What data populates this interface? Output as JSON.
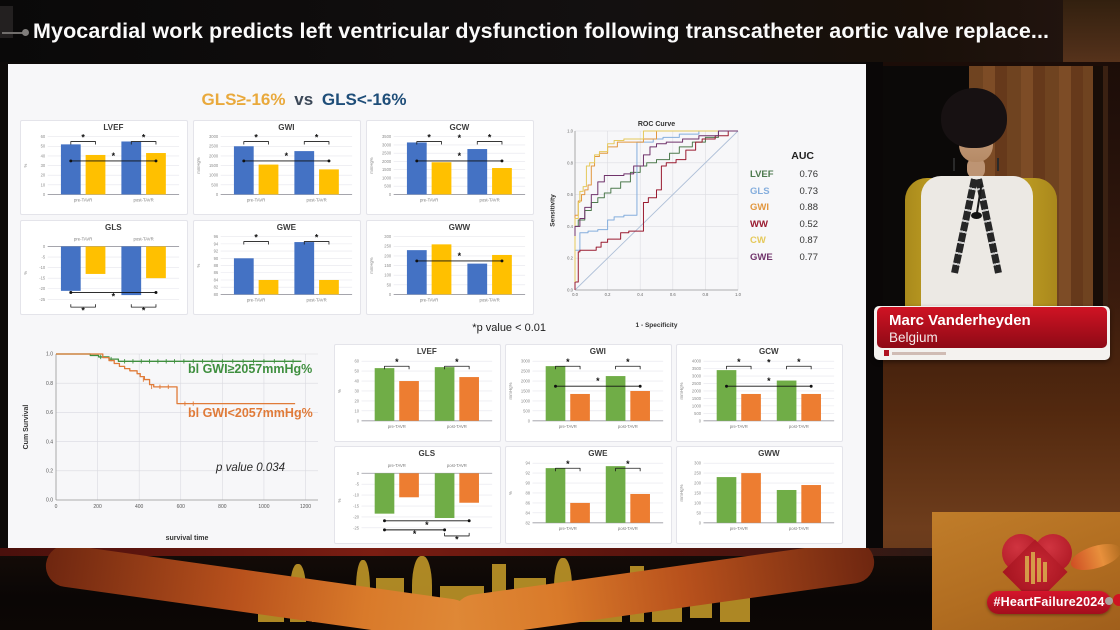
{
  "header": {
    "title": "Myocardial work predicts left ventricular dysfunction following transcatheter aortic valve replace..."
  },
  "speaker": {
    "name": "Marc Vanderheyden",
    "country": "Belgium"
  },
  "badge": {
    "hashtag": "#HeartFailure2024"
  },
  "chart_data": {
    "comparison_heading": {
      "group_a": "GLS≥-16%",
      "vs": "vs",
      "group_b": "GLS<-16%",
      "color_a": "#E9A93C",
      "color_b": "#1F4E79"
    },
    "footnote": "*p value < 0.01",
    "categories": [
      "pre-TAVR",
      "post-TAVR"
    ],
    "grid1": {
      "type": "bar",
      "series_colors": [
        "#4472C4",
        "#FFC000"
      ],
      "charts": [
        {
          "title": "LVEF",
          "ylabel": "%",
          "ylim": [
            0,
            60
          ],
          "step": 10,
          "series": [
            [
              52,
              55
            ],
            [
              41,
              43
            ]
          ],
          "sig": {
            "pairs": [
              true,
              true
            ],
            "span": true
          }
        },
        {
          "title": "GWI",
          "ylabel": "mmHg%",
          "ylim": [
            0,
            3000
          ],
          "step": 500,
          "series": [
            [
              2500,
              2250
            ],
            [
              1550,
              1300
            ]
          ],
          "sig": {
            "pairs": [
              true,
              true
            ],
            "span": true
          }
        },
        {
          "title": "GCW",
          "ylabel": "mmHg%",
          "ylim": [
            0,
            3500
          ],
          "step": 500,
          "series": [
            [
              3150,
              2750
            ],
            [
              1950,
              1600
            ]
          ],
          "sig": {
            "pairs": [
              true,
              true
            ],
            "span": true,
            "mid_star": true
          }
        },
        {
          "title": "GLS",
          "ylabel": "%",
          "ylim": [
            -25,
            0
          ],
          "step": 5,
          "series": [
            [
              -21,
              -23
            ],
            [
              -13,
              -15
            ]
          ],
          "sig": {
            "pairs": [
              true,
              true
            ],
            "span": true
          }
        },
        {
          "title": "GWE",
          "ylabel": "%",
          "ylim": [
            80,
            96
          ],
          "step": 2,
          "series": [
            [
              90,
              94.5
            ],
            [
              84,
              84
            ]
          ],
          "sig": {
            "pairs": [
              true,
              true
            ]
          }
        },
        {
          "title": "GWW",
          "ylabel": "mmHg%",
          "ylim": [
            0,
            300
          ],
          "step": 50,
          "series": [
            [
              230,
              160
            ],
            [
              260,
              205
            ]
          ],
          "sig": {
            "span": true
          }
        }
      ]
    },
    "grid2": {
      "type": "bar",
      "series_colors": [
        "#70AD47",
        "#ED7D31"
      ],
      "charts": [
        {
          "title": "LVEF",
          "ylabel": "%",
          "ylim": [
            0,
            60
          ],
          "step": 10,
          "series": [
            [
              53,
              54
            ],
            [
              40,
              44
            ]
          ],
          "sig": {
            "pairs": [
              true,
              true
            ]
          }
        },
        {
          "title": "GWI",
          "ylabel": "mmHg%",
          "ylim": [
            0,
            3000
          ],
          "step": 500,
          "series": [
            [
              2750,
              2250
            ],
            [
              1350,
              1500
            ]
          ],
          "sig": {
            "pairs": [
              true,
              true
            ],
            "span": true
          }
        },
        {
          "title": "GCW",
          "ylabel": "mmHg%",
          "ylim": [
            0,
            4000
          ],
          "step": 500,
          "series": [
            [
              3400,
              2700
            ],
            [
              1800,
              1800
            ]
          ],
          "sig": {
            "pairs": [
              true,
              true
            ],
            "span": true,
            "mid_star": true
          }
        },
        {
          "title": "GLS",
          "ylabel": "%",
          "ylim": [
            -25,
            0
          ],
          "step": 5,
          "series": [
            [
              -18.5,
              -20.5
            ],
            [
              -11,
              -13.5
            ]
          ],
          "sig": {
            "pairs": [
              false,
              true
            ],
            "span": true,
            "span2": true
          }
        },
        {
          "title": "GWE",
          "ylabel": "%",
          "ylim": [
            82,
            94
          ],
          "step": 2,
          "series": [
            [
              93,
              93.4
            ],
            [
              86,
              87.8
            ]
          ],
          "sig": {
            "pairs": [
              true,
              true
            ]
          }
        },
        {
          "title": "GWW",
          "ylabel": "mmHg%",
          "ylim": [
            0,
            300
          ],
          "step": 50,
          "series": [
            [
              230,
              165
            ],
            [
              250,
              190
            ]
          ],
          "sig": {}
        }
      ]
    },
    "roc": {
      "type": "line",
      "title": "ROC Curve",
      "xlabel": "1 - Specificity",
      "ylabel": "Sensitivity",
      "ticks": [
        0,
        0.2,
        0.4,
        0.6,
        0.8,
        1.0
      ],
      "legend_title": "AUC",
      "diagonal_color": "#AFC0D8",
      "series": [
        {
          "name": "LVEF",
          "auc": "0.76",
          "color": "#4E7A4E",
          "points": [
            [
              0,
              0.33
            ],
            [
              0.02,
              0.4
            ],
            [
              0.06,
              0.44
            ],
            [
              0.1,
              0.5
            ],
            [
              0.14,
              0.55
            ],
            [
              0.18,
              0.58
            ],
            [
              0.22,
              0.61
            ],
            [
              0.28,
              0.64
            ],
            [
              0.34,
              0.68
            ],
            [
              0.4,
              0.74
            ],
            [
              0.44,
              0.78
            ],
            [
              0.5,
              0.8
            ],
            [
              0.58,
              0.82
            ],
            [
              0.64,
              0.86
            ],
            [
              0.72,
              0.9
            ],
            [
              0.8,
              0.93
            ],
            [
              0.88,
              0.96
            ],
            [
              1,
              1
            ]
          ]
        },
        {
          "name": "GLS",
          "auc": "0.73",
          "color": "#85AEDD",
          "points": [
            [
              0,
              0.23
            ],
            [
              0.03,
              0.25
            ],
            [
              0.08,
              0.36
            ],
            [
              0.14,
              0.37
            ],
            [
              0.2,
              0.38
            ],
            [
              0.24,
              0.44
            ],
            [
              0.3,
              0.46
            ],
            [
              0.38,
              0.47
            ],
            [
              0.4,
              0.93
            ],
            [
              0.48,
              0.93
            ],
            [
              0.54,
              0.95
            ],
            [
              0.64,
              0.96
            ],
            [
              0.76,
              0.98
            ],
            [
              0.88,
              1
            ],
            [
              1,
              1
            ]
          ]
        },
        {
          "name": "GWI",
          "auc": "0.88",
          "color": "#E2973F",
          "points": [
            [
              0,
              0.05
            ],
            [
              0.02,
              0.47
            ],
            [
              0.04,
              0.56
            ],
            [
              0.06,
              0.6
            ],
            [
              0.08,
              0.63
            ],
            [
              0.1,
              0.66
            ],
            [
              0.12,
              0.78
            ],
            [
              0.15,
              0.84
            ],
            [
              0.2,
              0.86
            ],
            [
              0.26,
              0.9
            ],
            [
              0.3,
              0.93
            ],
            [
              0.42,
              0.93
            ],
            [
              0.5,
              0.95
            ],
            [
              0.56,
              1
            ],
            [
              1,
              1
            ]
          ]
        },
        {
          "name": "WW",
          "auc": "0.52",
          "color": "#9A1B30",
          "points": [
            [
              0,
              0
            ],
            [
              0.02,
              0.05
            ],
            [
              0.03,
              0.24
            ],
            [
              0.13,
              0.25
            ],
            [
              0.16,
              0.27
            ],
            [
              0.2,
              0.3
            ],
            [
              0.28,
              0.32
            ],
            [
              0.33,
              0.36
            ],
            [
              0.42,
              0.37
            ],
            [
              0.45,
              0.55
            ],
            [
              0.5,
              0.58
            ],
            [
              0.53,
              0.63
            ],
            [
              0.56,
              0.78
            ],
            [
              0.62,
              0.8
            ],
            [
              0.68,
              0.82
            ],
            [
              0.74,
              0.88
            ],
            [
              0.78,
              0.93
            ],
            [
              0.86,
              0.95
            ],
            [
              0.94,
              0.97
            ],
            [
              1,
              1
            ]
          ]
        },
        {
          "name": "CW",
          "auc": "0.87",
          "color": "#E5C95C",
          "points": [
            [
              0,
              0.05
            ],
            [
              0.02,
              0.45
            ],
            [
              0.03,
              0.55
            ],
            [
              0.05,
              0.62
            ],
            [
              0.07,
              0.65
            ],
            [
              0.09,
              0.78
            ],
            [
              0.12,
              0.8
            ],
            [
              0.15,
              0.85
            ],
            [
              0.2,
              0.87
            ],
            [
              0.24,
              0.92
            ],
            [
              0.3,
              0.94
            ],
            [
              0.36,
              0.95
            ],
            [
              0.42,
              0.95
            ],
            [
              0.46,
              1
            ],
            [
              1,
              1
            ]
          ]
        },
        {
          "name": "GWE",
          "auc": "0.77",
          "color": "#70336B",
          "points": [
            [
              0,
              0.34
            ],
            [
              0.03,
              0.4
            ],
            [
              0.06,
              0.45
            ],
            [
              0.1,
              0.52
            ],
            [
              0.14,
              0.6
            ],
            [
              0.18,
              0.68
            ],
            [
              0.22,
              0.72
            ],
            [
              0.3,
              0.72
            ],
            [
              0.36,
              0.73
            ],
            [
              0.42,
              0.78
            ],
            [
              0.46,
              0.85
            ],
            [
              0.5,
              0.9
            ],
            [
              0.56,
              0.92
            ],
            [
              0.66,
              0.93
            ],
            [
              0.76,
              0.95
            ],
            [
              0.88,
              0.97
            ],
            [
              1,
              1
            ]
          ]
        }
      ]
    },
    "survival": {
      "type": "line",
      "xlabel": "survival time",
      "ylabel": "Cum Survival",
      "yticks": [
        0,
        0.2,
        0.4,
        0.6,
        0.8,
        1.0
      ],
      "xticks": [
        0,
        200,
        400,
        600,
        800,
        1000,
        1200
      ],
      "xlim": [
        0,
        1260
      ],
      "p_value": "p value 0.034",
      "series": [
        {
          "label": "bl GWI≥2057mmHg%",
          "color": "#3F8F3F",
          "points": [
            [
              0,
              1
            ],
            [
              140,
              1
            ],
            [
              165,
              0.99
            ],
            [
              205,
              0.98
            ],
            [
              255,
              0.965
            ],
            [
              300,
              0.95
            ],
            [
              1180,
              0.95
            ]
          ],
          "censors": [
            [
              215,
              0.98
            ],
            [
              265,
              0.965
            ],
            [
              330,
              0.95
            ],
            [
              370,
              0.95
            ],
            [
              410,
              0.95
            ],
            [
              450,
              0.95
            ],
            [
              490,
              0.95
            ],
            [
              530,
              0.95
            ],
            [
              570,
              0.95
            ],
            [
              615,
              0.95
            ],
            [
              660,
              0.95
            ],
            [
              705,
              0.95
            ],
            [
              750,
              0.95
            ],
            [
              800,
              0.95
            ],
            [
              850,
              0.95
            ],
            [
              900,
              0.95
            ],
            [
              950,
              0.95
            ],
            [
              1000,
              0.95
            ],
            [
              1050,
              0.95
            ],
            [
              1100,
              0.95
            ],
            [
              1140,
              0.95
            ]
          ]
        },
        {
          "label": "bl GWI<2057mmHg%",
          "color": "#E07B39",
          "points": [
            [
              0,
              1
            ],
            [
              195,
              1
            ],
            [
              225,
              0.975
            ],
            [
              255,
              0.955
            ],
            [
              280,
              0.935
            ],
            [
              305,
              0.915
            ],
            [
              330,
              0.9
            ],
            [
              355,
              0.885
            ],
            [
              390,
              0.865
            ],
            [
              405,
              0.845
            ],
            [
              425,
              0.825
            ],
            [
              450,
              0.79
            ],
            [
              470,
              0.775
            ],
            [
              575,
              0.775
            ],
            [
              582,
              0.66
            ],
            [
              1150,
              0.66
            ]
          ],
          "censors": [
            [
              420,
              0.825
            ],
            [
              460,
              0.775
            ],
            [
              500,
              0.775
            ],
            [
              540,
              0.775
            ],
            [
              620,
              0.66
            ],
            [
              660,
              0.66
            ]
          ]
        }
      ]
    }
  }
}
